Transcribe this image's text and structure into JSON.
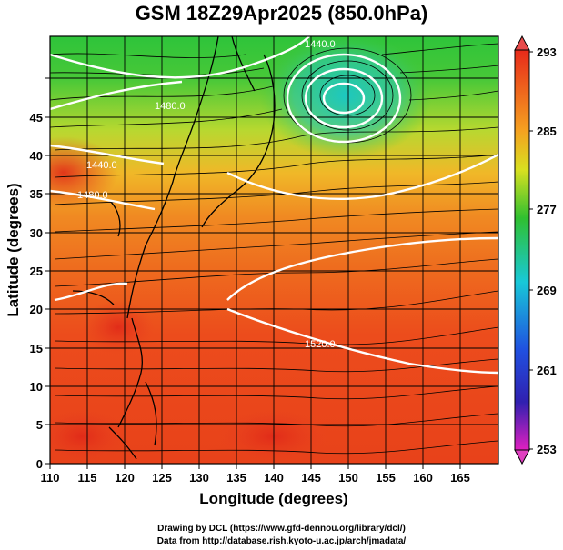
{
  "title": "GSM 18Z29Apr2025 (850.0hPa)",
  "x_axis_label": "Longitude (degrees)",
  "y_axis_label": "Latitude  (degrees)",
  "x_ticks": [
    "110",
    "115",
    "120",
    "125",
    "130",
    "135",
    "140",
    "145",
    "150",
    "155",
    "160",
    "165"
  ],
  "y_ticks": [
    "0",
    "5",
    "10",
    "15",
    "20",
    "25",
    "30",
    "35",
    "40",
    "45"
  ],
  "colorbar_ticks": [
    "293",
    "285",
    "277",
    "269",
    "261",
    "253"
  ],
  "contour_labels": [
    "1440.0",
    "1480.0",
    "1480.0",
    "1440.0",
    "1520.0"
  ],
  "credit_line1": "Drawing by DCL (https://www.gfd-dennou.org/library/dcl/)",
  "credit_line2": "Data from http://database.rish.kyoto-u.ac.jp/arch/jmadata/",
  "colors": {
    "warm": "#e8301a",
    "orange": "#f5a020",
    "yellow": "#d8e020",
    "green": "#30c030",
    "cyan": "#18c8d8",
    "blue": "#1840e0",
    "magenta": "#e020c0"
  }
}
